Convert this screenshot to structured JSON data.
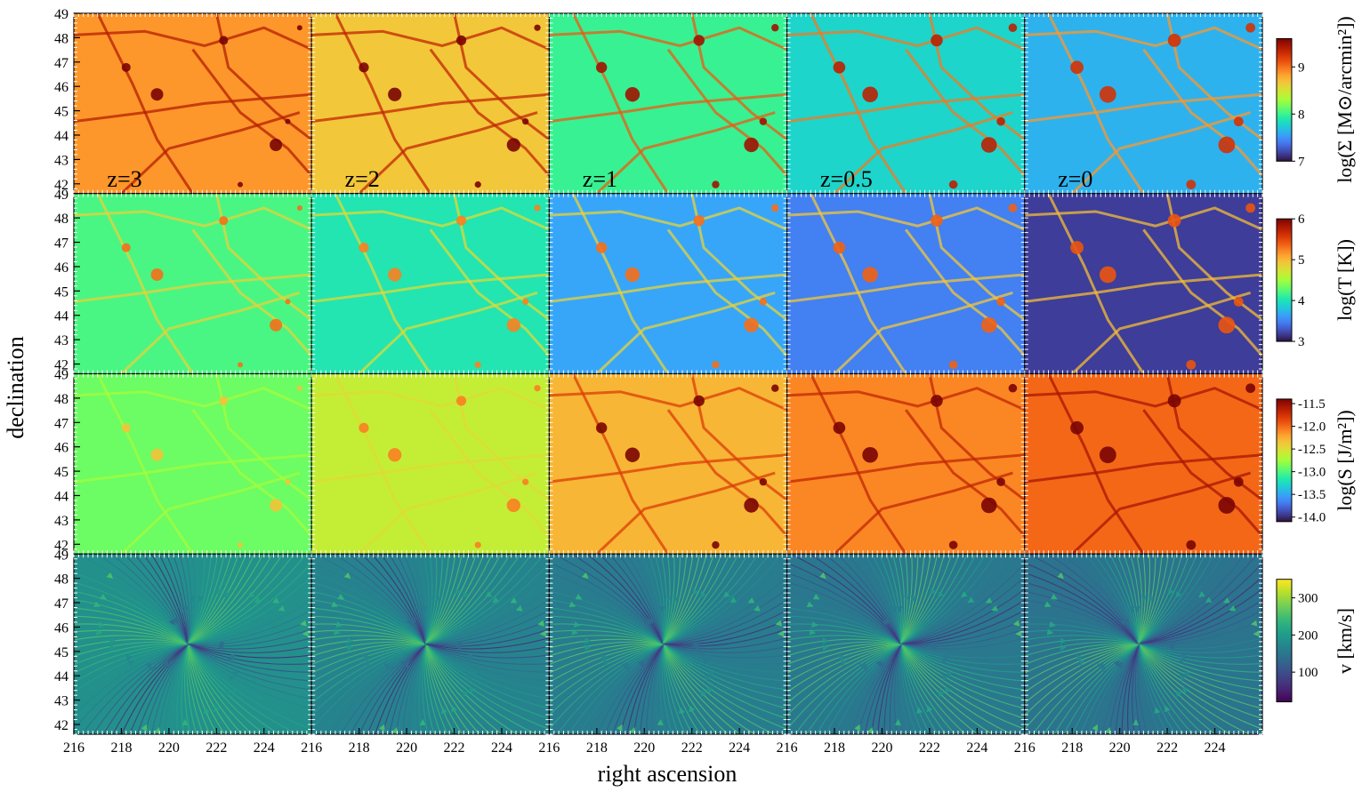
{
  "chart_data": {
    "type": "heatmap",
    "xlabel": "right ascension",
    "ylabel": "declination",
    "xlim": [
      216,
      226
    ],
    "ylim": [
      41.6,
      49
    ],
    "x_ticks": [
      "216",
      "218",
      "220",
      "222",
      "224"
    ],
    "y_ticks": [
      "42",
      "43",
      "44",
      "45",
      "46",
      "47",
      "48",
      "49"
    ],
    "columns": [
      "z=3",
      "z=2",
      "z=1",
      "z=0.5",
      "z=0"
    ],
    "rows": [
      {
        "quantity": "surface density",
        "colormap": "turbo",
        "colorbar_label": "log(Σ [M⊙/arcmin²])",
        "colorbar_ticks": [
          "7",
          "8",
          "9"
        ],
        "colorbar_range": [
          7,
          9.6
        ],
        "background_level": [
          0.72,
          0.64,
          0.38,
          0.3,
          0.24
        ],
        "filament_level": [
          0.92,
          0.9,
          0.8,
          0.76,
          0.72
        ]
      },
      {
        "quantity": "temperature",
        "colormap": "turbo",
        "colorbar_label": "log(T [K])",
        "colorbar_ticks": [
          "3",
          "4",
          "5",
          "6"
        ],
        "colorbar_range": [
          3,
          6
        ],
        "background_level": [
          0.4,
          0.34,
          0.22,
          0.16,
          0.06
        ],
        "filament_level": [
          0.62,
          0.6,
          0.62,
          0.64,
          0.66
        ]
      },
      {
        "quantity": "entropy",
        "colormap": "turbo",
        "colorbar_label": "log(S [J/m²])",
        "colorbar_ticks": [
          "-11.5",
          "-12.0",
          "-12.5",
          "-13.0",
          "-13.5",
          "-14.0"
        ],
        "colorbar_range": [
          -14.1,
          -11.4
        ],
        "background_level": [
          0.44,
          0.55,
          0.67,
          0.74,
          0.78
        ],
        "filament_level": [
          0.5,
          0.6,
          0.85,
          0.9,
          0.94
        ]
      },
      {
        "quantity": "velocity streamlines",
        "colormap": "viridis",
        "colorbar_label": "v [km/s]",
        "colorbar_ticks": [
          "100",
          "200",
          "300"
        ],
        "colorbar_range": [
          20,
          350
        ],
        "background_level": [
          0.5,
          0.45,
          0.42,
          0.4,
          0.38
        ],
        "filament_level": [
          0.5,
          0.45,
          0.42,
          0.4,
          0.38
        ]
      }
    ]
  },
  "colors": {
    "axis": "#000000",
    "tick_inner": "#ffffff",
    "background": "#ffffff"
  }
}
